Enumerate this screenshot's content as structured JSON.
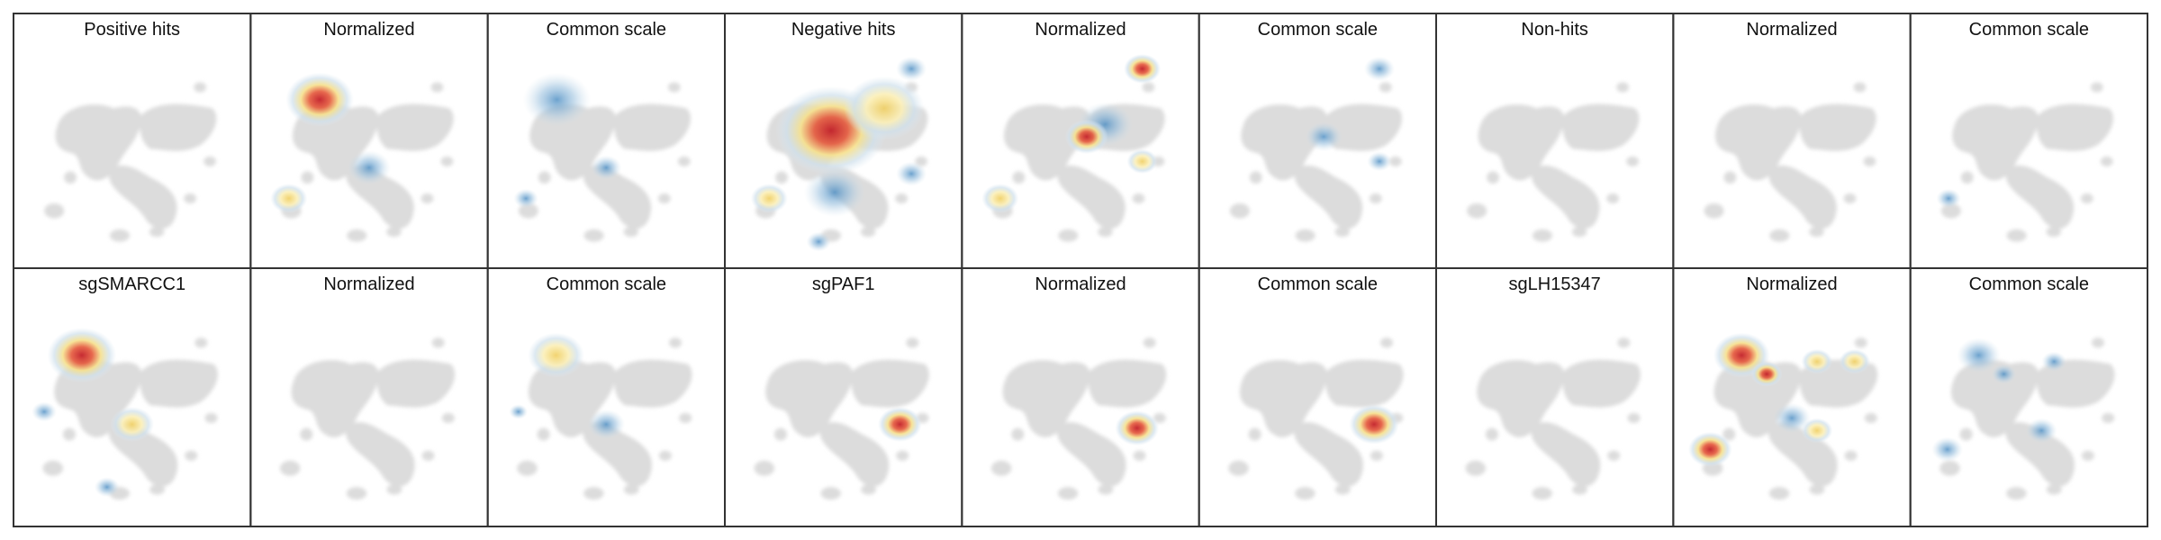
{
  "panels": [
    {
      "title": "Positive hits"
    },
    {
      "title": "Normalized"
    },
    {
      "title": "Common scale"
    },
    {
      "title": "Negative hits"
    },
    {
      "title": "Normalized"
    },
    {
      "title": "Common scale"
    },
    {
      "title": "Non-hits"
    },
    {
      "title": "Normalized"
    },
    {
      "title": "Common scale"
    },
    {
      "title": "sgSMARCC1"
    },
    {
      "title": "Normalized"
    },
    {
      "title": "Common scale"
    },
    {
      "title": "sgPAF1"
    },
    {
      "title": "Normalized"
    },
    {
      "title": "Common scale"
    },
    {
      "title": "sgLH15347"
    },
    {
      "title": "Normalized"
    },
    {
      "title": "Common scale"
    }
  ]
}
